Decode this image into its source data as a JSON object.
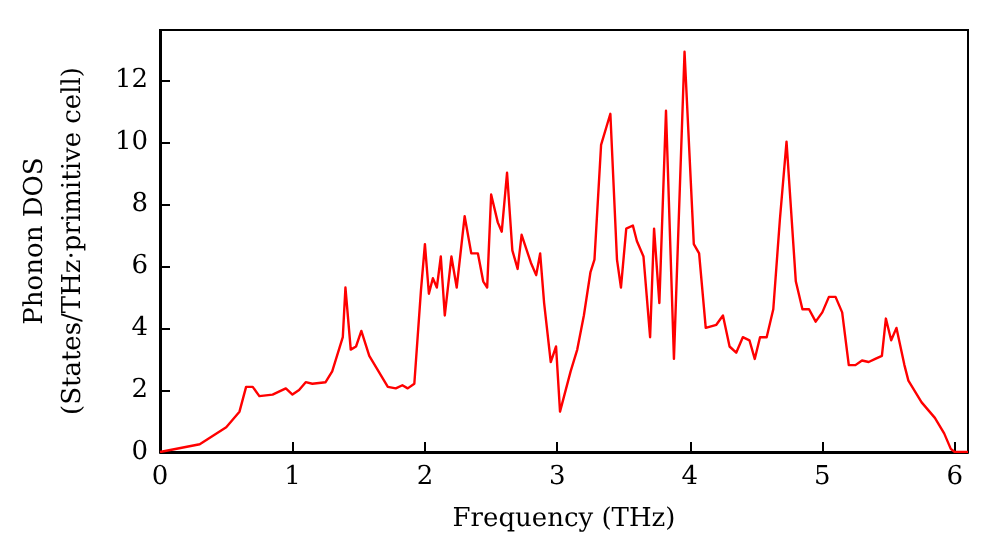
{
  "chart_data": {
    "type": "line",
    "xlabel": "Frequency (THz)",
    "ylabel": "Phonon DOS\n(States/THz·primitive cell)",
    "xlim": [
      0,
      6.1
    ],
    "ylim": [
      0,
      13.6
    ],
    "xticks": [
      0,
      1,
      2,
      3,
      4,
      5,
      6
    ],
    "yticks": [
      0,
      2,
      4,
      6,
      8,
      10,
      12
    ],
    "grid": false,
    "marker": "none",
    "line_style": "solid",
    "series": [
      {
        "color": "#ff0000",
        "x": [
          0,
          0.3,
          0.5,
          0.6,
          0.65,
          0.7,
          0.75,
          0.85,
          0.95,
          1.0,
          1.05,
          1.1,
          1.15,
          1.25,
          1.3,
          1.38,
          1.4,
          1.44,
          1.48,
          1.52,
          1.58,
          1.65,
          1.72,
          1.78,
          1.83,
          1.87,
          1.92,
          1.97,
          2.0,
          2.03,
          2.06,
          2.09,
          2.12,
          2.15,
          2.2,
          2.24,
          2.3,
          2.35,
          2.4,
          2.44,
          2.47,
          2.5,
          2.55,
          2.58,
          2.62,
          2.66,
          2.7,
          2.73,
          2.8,
          2.84,
          2.87,
          2.9,
          2.95,
          2.99,
          3.02,
          3.1,
          3.15,
          3.2,
          3.25,
          3.28,
          3.33,
          3.4,
          3.45,
          3.48,
          3.52,
          3.57,
          3.6,
          3.65,
          3.7,
          3.73,
          3.77,
          3.82,
          3.88,
          3.96,
          4.03,
          4.07,
          4.12,
          4.2,
          4.25,
          4.3,
          4.35,
          4.4,
          4.45,
          4.49,
          4.53,
          4.58,
          4.63,
          4.68,
          4.73,
          4.8,
          4.85,
          4.9,
          4.95,
          5.0,
          5.05,
          5.1,
          5.15,
          5.2,
          5.25,
          5.3,
          5.35,
          5.4,
          5.45,
          5.48,
          5.52,
          5.56,
          5.62,
          5.65,
          5.75,
          5.85,
          5.92,
          5.97,
          6.0,
          6.1
        ],
        "values": [
          0,
          0.25,
          0.8,
          1.3,
          2.1,
          2.1,
          1.8,
          1.85,
          2.05,
          1.85,
          2.0,
          2.25,
          2.2,
          2.25,
          2.6,
          3.7,
          5.3,
          3.3,
          3.4,
          3.9,
          3.1,
          2.6,
          2.1,
          2.05,
          2.15,
          2.05,
          2.2,
          5.2,
          6.7,
          5.1,
          5.6,
          5.3,
          6.3,
          4.4,
          6.3,
          5.3,
          7.6,
          6.4,
          6.4,
          5.5,
          5.3,
          8.3,
          7.4,
          7.1,
          9.0,
          6.5,
          5.9,
          7.0,
          6.1,
          5.7,
          6.4,
          4.8,
          2.9,
          3.4,
          1.3,
          2.6,
          3.3,
          4.4,
          5.8,
          6.2,
          9.9,
          10.9,
          6.2,
          5.3,
          7.2,
          7.3,
          6.8,
          6.3,
          3.7,
          7.2,
          4.8,
          11.0,
          3.0,
          12.9,
          6.7,
          6.4,
          4.0,
          4.1,
          4.4,
          3.4,
          3.2,
          3.7,
          3.6,
          3.0,
          3.7,
          3.7,
          4.6,
          7.5,
          10.0,
          5.5,
          4.6,
          4.6,
          4.2,
          4.5,
          5.0,
          5.0,
          4.5,
          2.8,
          2.8,
          2.95,
          2.9,
          3.0,
          3.1,
          4.3,
          3.6,
          4.0,
          2.8,
          2.3,
          1.6,
          1.1,
          0.6,
          0.1,
          0,
          0
        ]
      }
    ]
  }
}
